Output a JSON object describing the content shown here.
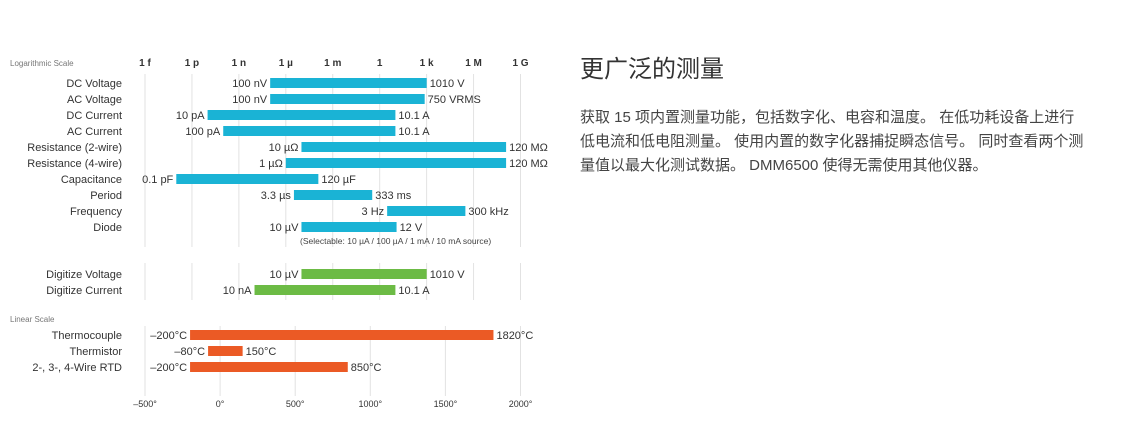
{
  "section": {
    "title": "更广泛的测量",
    "paragraph_lines": [
      "获取 15 项内置测量功能，包括数字化、电容和温度。 在低功耗设备上进行",
      "低电流和低电阻测量。 使用内置的数字化器捕捉瞬态信号。 同时查看两个测",
      "量值以最大化测试数据。 DMM6500 使得无需使用其他仪器。"
    ]
  },
  "chart_data": [
    {
      "type": "bar",
      "subtype": "floating-range-horizontal",
      "title": "Logarithmic Scale",
      "scale": "log",
      "xlim": [
        1e-15,
        1000000000.0
      ],
      "ticks": [
        {
          "label": "1 f",
          "value": 1e-15
        },
        {
          "label": "1 p",
          "value": 1e-12
        },
        {
          "label": "1 n",
          "value": 1e-09
        },
        {
          "label": "1 µ",
          "value": 1e-06
        },
        {
          "label": "1 m",
          "value": 0.001
        },
        {
          "label": "1",
          "value": 1
        },
        {
          "label": "1 k",
          "value": 1000.0
        },
        {
          "label": "1 M",
          "value": 1000000.0
        },
        {
          "label": "1 G",
          "value": 1000000000.0
        }
      ],
      "grid": true,
      "series": [
        {
          "name": "DC Voltage",
          "min": 1e-07,
          "max": 1010,
          "min_label": "100 nV",
          "max_label": "1010 V",
          "group": "measure",
          "color": "#1ab3d5"
        },
        {
          "name": "AC Voltage",
          "min": 1e-07,
          "max": 750,
          "min_label": "100 nV",
          "max_label": "750 VRMS",
          "group": "measure",
          "color": "#1ab3d5"
        },
        {
          "name": "DC Current",
          "min": 1e-11,
          "max": 10.1,
          "min_label": "10 pA",
          "max_label": "10.1 A",
          "group": "measure",
          "color": "#1ab3d5"
        },
        {
          "name": "AC Current",
          "min": 1e-10,
          "max": 10.1,
          "min_label": "100 pA",
          "max_label": "10.1 A",
          "group": "measure",
          "color": "#1ab3d5"
        },
        {
          "name": "Resistance (2-wire)",
          "min": 1e-05,
          "max": 120000000.0,
          "min_label": "10 µΩ",
          "max_label": "120 MΩ",
          "group": "measure",
          "color": "#1ab3d5"
        },
        {
          "name": "Resistance (4-wire)",
          "min": 1e-06,
          "max": 120000000.0,
          "min_label": "1 µΩ",
          "max_label": "120 MΩ",
          "group": "measure",
          "color": "#1ab3d5"
        },
        {
          "name": "Capacitance",
          "min": 1e-13,
          "max": 0.00012,
          "min_label": "0.1 pF",
          "max_label": "120 µF",
          "group": "measure",
          "color": "#1ab3d5"
        },
        {
          "name": "Period",
          "min": 3.3e-06,
          "max": 0.333,
          "min_label": "3.3 µs",
          "max_label": "333 ms",
          "group": "measure",
          "color": "#1ab3d5"
        },
        {
          "name": "Frequency",
          "min": 3,
          "max": 300000.0,
          "min_label": "3 Hz",
          "max_label": "300 kHz",
          "group": "measure",
          "color": "#1ab3d5"
        },
        {
          "name": "Diode",
          "min": 1e-05,
          "max": 12,
          "min_label": "10 µV",
          "max_label": "12 V",
          "group": "measure",
          "color": "#1ab3d5"
        },
        {
          "name": "Digitize Voltage",
          "min": 1e-05,
          "max": 1010,
          "min_label": "10 µV",
          "max_label": "1010 V",
          "group": "digitize",
          "color": "#6cbb45"
        },
        {
          "name": "Digitize Current",
          "min": 1e-08,
          "max": 10.1,
          "min_label": "10 nA",
          "max_label": "10.1 A",
          "group": "digitize",
          "color": "#6cbb45"
        }
      ],
      "annotation": "(Selectable: 10 µA / 100 µA / 1 mA / 10 mA source)"
    },
    {
      "type": "bar",
      "subtype": "floating-range-horizontal",
      "title": "Linear Scale",
      "scale": "linear",
      "xlim": [
        -500,
        2000
      ],
      "ticks": [
        {
          "label": "–500°",
          "value": -500
        },
        {
          "label": "0°",
          "value": 0
        },
        {
          "label": "500°",
          "value": 500
        },
        {
          "label": "1000°",
          "value": 1000
        },
        {
          "label": "1500°",
          "value": 1500
        },
        {
          "label": "2000°",
          "value": 2000
        }
      ],
      "grid": true,
      "series": [
        {
          "name": "Thermocouple",
          "min": -200,
          "max": 1820,
          "min_label": "–200°C",
          "max_label": "1820°C",
          "color": "#eb5a25"
        },
        {
          "name": "Thermistor",
          "min": -80,
          "max": 150,
          "min_label": "–80°C",
          "max_label": "150°C",
          "color": "#eb5a25"
        },
        {
          "name": "2-, 3-, 4-Wire RTD",
          "min": -200,
          "max": 850,
          "min_label": "–200°C",
          "max_label": "850°C",
          "color": "#eb5a25"
        }
      ]
    }
  ]
}
